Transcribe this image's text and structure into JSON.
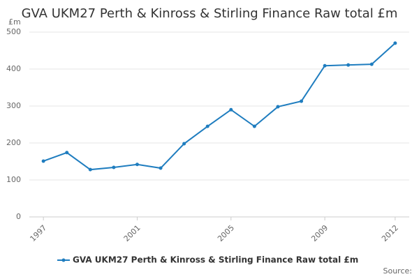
{
  "chart_data": {
    "type": "line",
    "title": "GVA UKM27 Perth & Kinross & Stirling Finance Raw total £m",
    "y_label": "£m",
    "source": "Source:",
    "x": [
      1997,
      1998,
      1999,
      2000,
      2001,
      2002,
      2003,
      2004,
      2005,
      2006,
      2007,
      2008,
      2009,
      2010,
      2011,
      2012
    ],
    "series": [
      {
        "name": "GVA UKM27 Perth & Kinross & Stirling Finance Raw total £m",
        "color": "#1f7dbf",
        "values": [
          151,
          174,
          128,
          134,
          142,
          132,
          198,
          245,
          290,
          245,
          298,
          313,
          409,
          411,
          413,
          470
        ]
      }
    ],
    "xlim": [
      1996.4,
      2012.6
    ],
    "xticks": [
      1997,
      2001,
      2005,
      2009,
      2012
    ],
    "ylim": [
      0,
      500
    ],
    "yticks": [
      0,
      100,
      200,
      300,
      400,
      500
    ],
    "grid": true
  }
}
